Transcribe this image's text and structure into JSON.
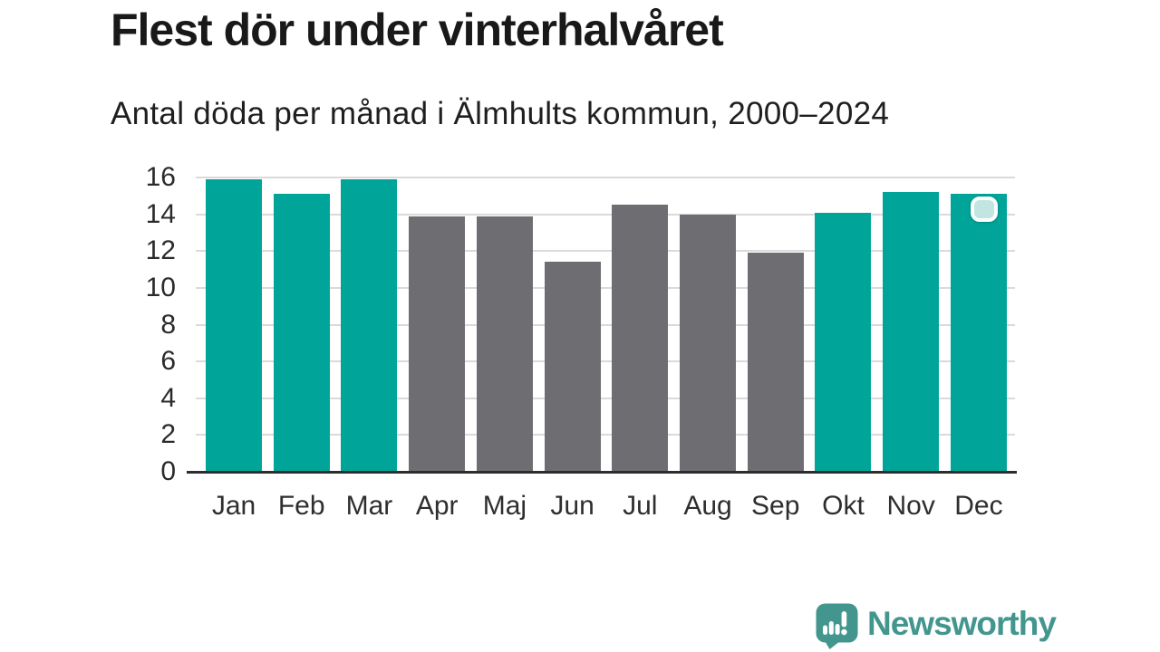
{
  "header": {
    "title": "Flest dör under vinterhalvåret",
    "subtitle": "Antal döda per månad i Älmhults kommun, 2000–2024"
  },
  "chart_data": {
    "type": "bar",
    "title": "Flest dör under vinterhalvåret",
    "subtitle": "Antal döda per månad i Älmhults kommun, 2000–2024",
    "categories": [
      "Jan",
      "Feb",
      "Mar",
      "Apr",
      "Maj",
      "Jun",
      "Jul",
      "Aug",
      "Sep",
      "Okt",
      "Nov",
      "Dec"
    ],
    "values": [
      15.9,
      15.1,
      15.9,
      13.9,
      13.9,
      11.4,
      14.5,
      14.0,
      11.9,
      14.1,
      15.2,
      15.1
    ],
    "bar_color_roles": [
      "winter",
      "winter",
      "winter",
      "summer",
      "summer",
      "summer",
      "summer",
      "summer",
      "summer",
      "winter",
      "winter",
      "winter"
    ],
    "colors": {
      "winter": "#00a499",
      "summer": "#6e6d72"
    },
    "xlabel": "",
    "ylabel": "",
    "ylim": [
      0,
      16
    ],
    "yticks": [
      0,
      2,
      4,
      6,
      8,
      10,
      12,
      14,
      16
    ],
    "grid": true,
    "legend": "none",
    "gridline_color": "#dadada",
    "axis_line_color": "#2d2d2d"
  },
  "overlay": {
    "cursor_icon": "rounded-square-click-highlight",
    "cursor_on": "Dec bar top"
  },
  "footer": {
    "brand": "Newsworthy",
    "brand_color": "#43968e",
    "logo_icon": "speech-bubble-bar-chart-exclamation-icon"
  }
}
